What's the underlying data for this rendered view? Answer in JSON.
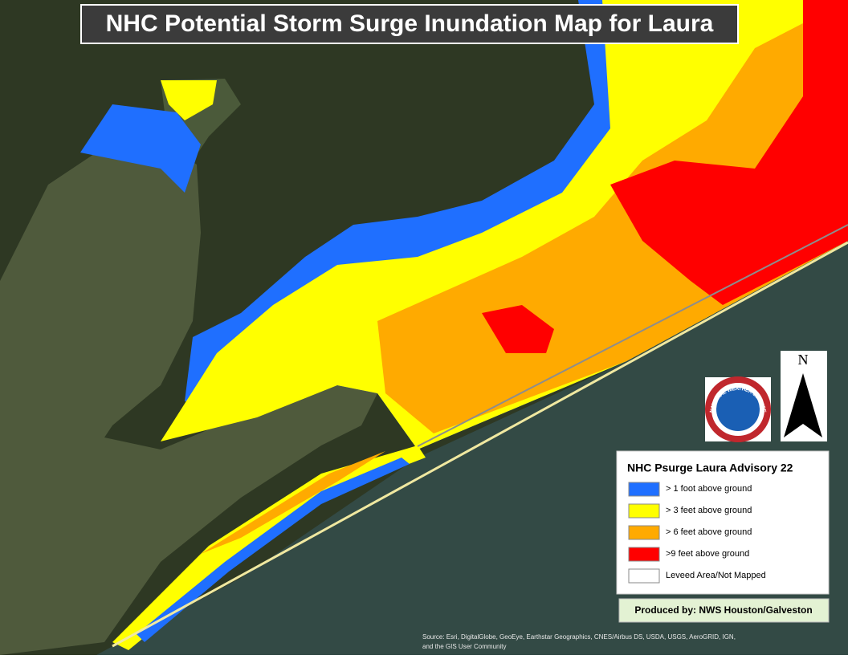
{
  "title": "NHC Potential Storm Surge Inundation Map for Laura",
  "legend": {
    "title": "NHC Psurge Laura Advisory 22",
    "items": [
      {
        "label": "> 1 foot above ground",
        "color": "#1f6fff"
      },
      {
        "label": "> 3 feet above ground",
        "color": "#ffff00"
      },
      {
        "label": "> 6 feet above ground",
        "color": "#ffaa00"
      },
      {
        "label": ">9 feet above ground",
        "color": "#ff0000"
      },
      {
        "label": "Leveed Area/Not Mapped",
        "color": "#ffffff"
      }
    ]
  },
  "credit": "Produced by: NWS Houston/Galveston",
  "source": [
    "Source: Esri, DigitalGlobe, GeoEye, Earthstar Geographics, CNES/Airbus DS, USDA, USGS, AeroGRID, IGN,",
    "and the GIS User Community"
  ],
  "north_arrow": "N",
  "logo": "NATIONAL WEATHER SERVICE"
}
